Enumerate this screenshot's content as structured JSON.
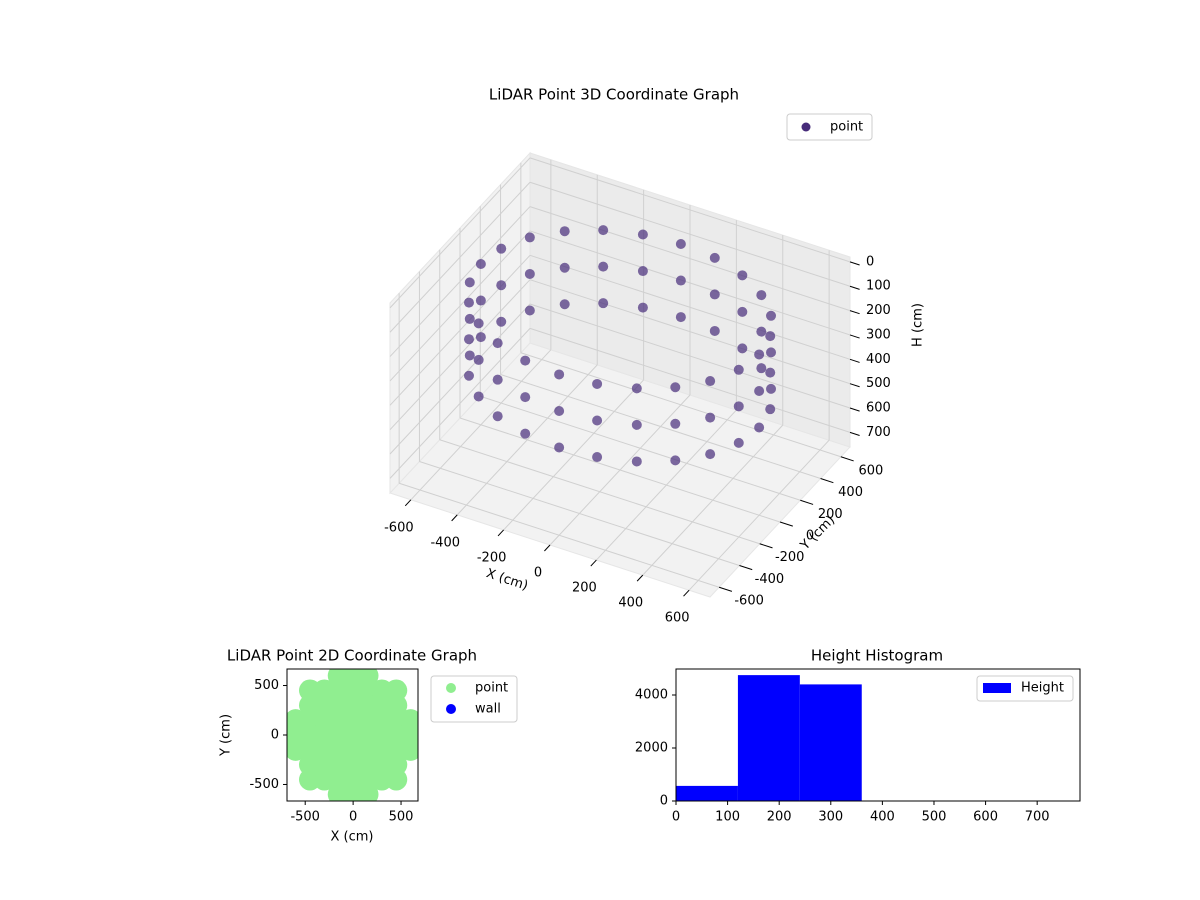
{
  "chart_data": [
    {
      "type": "scatter3d",
      "title": "LiDAR Point 3D Coordinate Graph",
      "x_label": "X (cm)",
      "y_label": "Y (cm)",
      "z_label": "H (cm)",
      "xlim": [
        -690,
        690
      ],
      "ylim": [
        -690,
        690
      ],
      "zlim": [
        760,
        -20
      ],
      "xticks": [
        -600,
        -400,
        -200,
        0,
        200,
        400,
        600
      ],
      "yticks": [
        -600,
        -400,
        -200,
        0,
        200,
        400,
        600
      ],
      "zticks": [
        0,
        100,
        200,
        300,
        400,
        500,
        600,
        700
      ],
      "grid": true,
      "legend": "upper right",
      "series": [
        {
          "name": "point",
          "color": "#472c7a",
          "x": [
            600,
            580,
            520,
            424,
            300,
            155,
            0,
            -155,
            -300,
            -424,
            -520,
            -580,
            -600,
            -580,
            -520,
            -424,
            -300,
            -155,
            0,
            155,
            300,
            424,
            520,
            580,
            600,
            580,
            520,
            424,
            300,
            155,
            0,
            -155,
            -300,
            -424,
            -520,
            -580,
            -600,
            -580,
            -520,
            -424,
            -300,
            -155,
            0,
            155,
            300,
            424,
            520,
            580,
            600,
            580,
            520,
            424,
            300,
            155,
            0,
            -155,
            -300,
            -424,
            -520,
            -580,
            -600,
            -580,
            -520,
            -424,
            -300,
            -155,
            0,
            155,
            300,
            424,
            520,
            580
          ],
          "y": [
            0,
            155,
            300,
            424,
            520,
            580,
            600,
            580,
            520,
            424,
            300,
            155,
            0,
            -155,
            -300,
            -424,
            -520,
            -580,
            -600,
            -580,
            -520,
            -424,
            -300,
            -155,
            0,
            155,
            300,
            424,
            520,
            580,
            600,
            580,
            520,
            424,
            300,
            155,
            0,
            -155,
            -300,
            -424,
            -520,
            -580,
            -600,
            -580,
            -520,
            -424,
            -300,
            -155,
            0,
            155,
            300,
            424,
            520,
            580,
            600,
            580,
            520,
            424,
            300,
            155,
            0,
            -155,
            -300,
            -424,
            -520,
            -580,
            -600,
            -580,
            -520,
            -424,
            -300,
            -155
          ],
          "z": [
            100,
            100,
            100,
            100,
            100,
            100,
            100,
            100,
            100,
            100,
            100,
            100,
            100,
            100,
            100,
            100,
            100,
            100,
            100,
            100,
            100,
            100,
            100,
            100,
            250,
            250,
            250,
            250,
            250,
            250,
            250,
            250,
            250,
            250,
            250,
            250,
            250,
            250,
            250,
            250,
            250,
            250,
            250,
            250,
            250,
            250,
            250,
            250,
            400,
            400,
            400,
            400,
            400,
            400,
            400,
            400,
            400,
            400,
            400,
            400,
            400,
            400,
            400,
            400,
            400,
            400,
            400,
            400,
            400,
            400,
            400,
            400
          ]
        }
      ]
    },
    {
      "type": "scatter",
      "title": "LiDAR Point 2D Coordinate Graph",
      "x_label": "X (cm)",
      "y_label": "Y (cm)",
      "xlim": [
        -690,
        677
      ],
      "ylim": [
        -667,
        667
      ],
      "xticks": [
        -500,
        0,
        500
      ],
      "yticks": [
        -500,
        0,
        500
      ],
      "legend": "outside right",
      "series": [
        {
          "name": "point",
          "color": "#90ee90",
          "x": [
            -150,
            0,
            150,
            -450,
            -300,
            -150,
            0,
            150,
            300,
            450,
            -450,
            -300,
            -150,
            0,
            150,
            300,
            450,
            -600,
            -450,
            -300,
            -150,
            0,
            150,
            300,
            450,
            600,
            -600,
            -450,
            -300,
            -150,
            0,
            150,
            300,
            450,
            600,
            -600,
            -450,
            -300,
            -150,
            0,
            150,
            300,
            450,
            600,
            -450,
            -300,
            -150,
            0,
            150,
            300,
            450,
            -450,
            -300,
            -150,
            0,
            150,
            300,
            450,
            -150,
            0,
            150
          ],
          "y": [
            600,
            600,
            600,
            450,
            450,
            450,
            450,
            450,
            450,
            450,
            300,
            300,
            300,
            300,
            300,
            300,
            300,
            150,
            150,
            150,
            150,
            150,
            150,
            150,
            150,
            150,
            0,
            0,
            0,
            0,
            0,
            0,
            0,
            0,
            0,
            -150,
            -150,
            -150,
            -150,
            -150,
            -150,
            -150,
            -150,
            -150,
            -300,
            -300,
            -300,
            -300,
            -300,
            -300,
            -300,
            -450,
            -450,
            -450,
            -450,
            -450,
            -450,
            -450,
            -600,
            -600,
            -600
          ]
        },
        {
          "name": "wall",
          "color": "#0000ff",
          "x": [],
          "y": []
        }
      ]
    },
    {
      "type": "histogram",
      "title": "Height Histogram",
      "name": "Height",
      "color": "#0000ff",
      "bins": [
        0,
        120,
        240,
        360,
        480,
        600,
        720
      ],
      "values": [
        570,
        4750,
        4400,
        0,
        0,
        0
      ],
      "xlim": [
        0,
        783
      ],
      "ylim": [
        0,
        4981
      ],
      "xticks": [
        0,
        100,
        200,
        300,
        400,
        500,
        600,
        700
      ],
      "yticks": [
        0,
        2000,
        4000
      ],
      "legend": "upper right"
    }
  ]
}
